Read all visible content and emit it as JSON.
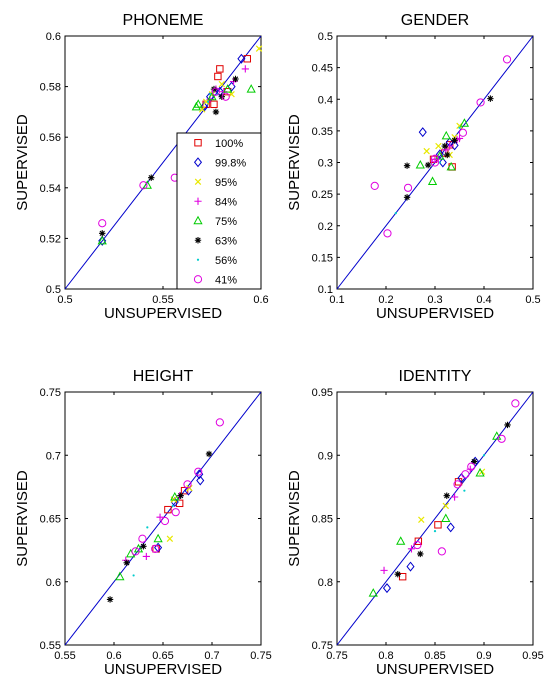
{
  "chart_data": [
    {
      "type": "scatter",
      "title": "PHONEME",
      "xlabel": "UNSUPERVISED",
      "ylabel": "SUPERVISED",
      "xlim": [
        0.5,
        0.6
      ],
      "ylim": [
        0.5,
        0.6
      ],
      "xticks": [
        "0.5",
        "0.55",
        "0.6"
      ],
      "yticks": [
        "0.5",
        "0.52",
        "0.54",
        "0.56",
        "0.58",
        "0.6"
      ],
      "diagonal": true,
      "legend": "right",
      "series": [
        {
          "name": "100%",
          "points": [
            [
              0.576,
              0.573
            ],
            [
              0.578,
              0.584
            ],
            [
              0.579,
              0.587
            ],
            [
              0.593,
              0.591
            ],
            [
              0.583,
              0.578
            ],
            [
              0.572,
              0.573
            ]
          ]
        },
        {
          "name": "99.8%",
          "points": [
            [
              0.571,
              0.572
            ],
            [
              0.59,
              0.591
            ],
            [
              0.574,
              0.576
            ],
            [
              0.585,
              0.58
            ],
            [
              0.579,
              0.578
            ],
            [
              0.519,
              0.519
            ]
          ]
        },
        {
          "name": "95%",
          "points": [
            [
              0.599,
              0.595
            ],
            [
              0.572,
              0.574
            ],
            [
              0.58,
              0.581
            ],
            [
              0.575,
              0.577
            ],
            [
              0.57,
              0.571
            ],
            [
              0.585,
              0.577
            ]
          ]
        },
        {
          "name": "84%",
          "points": [
            [
              0.592,
              0.587
            ],
            [
              0.581,
              0.578
            ],
            [
              0.577,
              0.579
            ],
            [
              0.574,
              0.575
            ],
            [
              0.586,
              0.582
            ]
          ]
        },
        {
          "name": "75%",
          "points": [
            [
              0.567,
              0.572
            ],
            [
              0.575,
              0.576
            ],
            [
              0.583,
              0.579
            ],
            [
              0.595,
              0.579
            ],
            [
              0.568,
              0.573
            ],
            [
              0.542,
              0.541
            ],
            [
              0.519,
              0.519
            ]
          ]
        },
        {
          "name": "63%",
          "points": [
            [
              0.576,
              0.579
            ],
            [
              0.587,
              0.583
            ],
            [
              0.577,
              0.57
            ],
            [
              0.58,
              0.576
            ],
            [
              0.544,
              0.544
            ],
            [
              0.519,
              0.522
            ]
          ]
        },
        {
          "name": "56%",
          "points": [
            [
              0.574,
              0.577
            ],
            [
              0.578,
              0.577
            ],
            [
              0.573,
              0.574
            ]
          ]
        },
        {
          "name": "41%",
          "points": [
            [
              0.519,
              0.526
            ],
            [
              0.54,
              0.541
            ],
            [
              0.577,
              0.578
            ],
            [
              0.582,
              0.576
            ],
            [
              0.556,
              0.544
            ]
          ]
        }
      ]
    },
    {
      "type": "scatter",
      "title": "GENDER",
      "xlabel": "UNSUPERVISED",
      "ylabel": "SUPERVISED",
      "xlim": [
        0.1,
        0.5
      ],
      "ylim": [
        0.1,
        0.5
      ],
      "xticks": [
        "0.1",
        "0.2",
        "0.3",
        "0.4",
        "0.5"
      ],
      "yticks": [
        "0.1",
        "0.15",
        "0.2",
        "0.25",
        "0.3",
        "0.35",
        "0.4",
        "0.45",
        "0.5"
      ],
      "diagonal": true,
      "series": [
        {
          "name": "100%",
          "points": [
            [
              0.335,
              0.293
            ],
            [
              0.33,
              0.328
            ],
            [
              0.297,
              0.305
            ],
            [
              0.32,
              0.315
            ]
          ]
        },
        {
          "name": "99.8%",
          "points": [
            [
              0.275,
              0.348
            ],
            [
              0.316,
              0.3
            ],
            [
              0.34,
              0.327
            ],
            [
              0.33,
              0.332
            ],
            [
              0.31,
              0.313
            ]
          ]
        },
        {
          "name": "95%",
          "points": [
            [
              0.283,
              0.318
            ],
            [
              0.307,
              0.326
            ],
            [
              0.35,
              0.358
            ],
            [
              0.34,
              0.34
            ],
            [
              0.33,
              0.312
            ]
          ]
        },
        {
          "name": "84%",
          "points": [
            [
              0.35,
              0.338
            ],
            [
              0.3,
              0.305
            ],
            [
              0.33,
              0.326
            ],
            [
              0.322,
              0.32
            ],
            [
              0.345,
              0.336
            ]
          ]
        },
        {
          "name": "75%",
          "points": [
            [
              0.295,
              0.27
            ],
            [
              0.323,
              0.342
            ],
            [
              0.333,
              0.293
            ],
            [
              0.36,
              0.362
            ],
            [
              0.27,
              0.296
            ],
            [
              0.31,
              0.31
            ]
          ]
        },
        {
          "name": "63%",
          "points": [
            [
              0.243,
              0.245
            ],
            [
              0.243,
              0.295
            ],
            [
              0.286,
              0.296
            ],
            [
              0.32,
              0.326
            ],
            [
              0.413,
              0.401
            ],
            [
              0.34,
              0.335
            ],
            [
              0.325,
              0.312
            ]
          ]
        },
        {
          "name": "56%",
          "points": [
            [
              0.35,
              0.355
            ],
            [
              0.22,
              0.22
            ],
            [
              0.31,
              0.3
            ]
          ]
        },
        {
          "name": "41%",
          "points": [
            [
              0.177,
              0.263
            ],
            [
              0.203,
              0.188
            ],
            [
              0.245,
              0.26
            ],
            [
              0.3,
              0.306
            ],
            [
              0.357,
              0.347
            ],
            [
              0.393,
              0.395
            ],
            [
              0.447,
              0.463
            ],
            [
              0.3,
              0.3
            ]
          ]
        }
      ]
    },
    {
      "type": "scatter",
      "title": "HEIGHT",
      "xlabel": "UNSUPERVISED",
      "ylabel": "SUPERVISED",
      "xlim": [
        0.55,
        0.75
      ],
      "ylim": [
        0.55,
        0.75
      ],
      "xticks": [
        "0.55",
        "0.6",
        "0.65",
        "0.7",
        "0.75"
      ],
      "yticks": [
        "0.55",
        "0.6",
        "0.65",
        "0.7",
        "0.75"
      ],
      "diagonal": true,
      "series": [
        {
          "name": "100%",
          "points": [
            [
              0.655,
              0.657
            ],
            [
              0.672,
              0.672
            ],
            [
              0.667,
              0.662
            ],
            [
              0.643,
              0.626
            ]
          ]
        },
        {
          "name": "99.8%",
          "points": [
            [
              0.687,
              0.685
            ],
            [
              0.676,
              0.672
            ],
            [
              0.645,
              0.627
            ],
            [
              0.662,
              0.663
            ],
            [
              0.688,
              0.68
            ]
          ]
        },
        {
          "name": "95%",
          "points": [
            [
              0.657,
              0.634
            ],
            [
              0.661,
              0.665
            ],
            [
              0.677,
              0.674
            ]
          ]
        },
        {
          "name": "84%",
          "points": [
            [
              0.633,
              0.62
            ],
            [
              0.612,
              0.617
            ],
            [
              0.647,
              0.651
            ],
            [
              0.667,
              0.668
            ]
          ]
        },
        {
          "name": "75%",
          "points": [
            [
              0.606,
              0.604
            ],
            [
              0.625,
              0.626
            ],
            [
              0.645,
              0.634
            ],
            [
              0.662,
              0.667
            ],
            [
              0.617,
              0.622
            ]
          ]
        },
        {
          "name": "63%",
          "points": [
            [
              0.596,
              0.586
            ],
            [
              0.613,
              0.615
            ],
            [
              0.63,
              0.628
            ],
            [
              0.668,
              0.668
            ],
            [
              0.697,
              0.701
            ]
          ]
        },
        {
          "name": "56%",
          "points": [
            [
              0.634,
              0.643
            ],
            [
              0.62,
              0.605
            ],
            [
              0.66,
              0.66
            ]
          ]
        },
        {
          "name": "41%",
          "points": [
            [
              0.622,
              0.624
            ],
            [
              0.629,
              0.634
            ],
            [
              0.652,
              0.648
            ],
            [
              0.663,
              0.655
            ],
            [
              0.675,
              0.677
            ],
            [
              0.686,
              0.687
            ],
            [
              0.708,
              0.726
            ],
            [
              0.642,
              0.626
            ]
          ]
        }
      ]
    },
    {
      "type": "scatter",
      "title": "IDENTITY",
      "xlabel": "UNSUPERVISED",
      "ylabel": "SUPERVISED",
      "xlim": [
        0.75,
        0.95
      ],
      "ylim": [
        0.75,
        0.95
      ],
      "xticks": [
        "0.75",
        "0.8",
        "0.85",
        "0.9",
        "0.95"
      ],
      "yticks": [
        "0.75",
        "0.8",
        "0.85",
        "0.9",
        "0.95"
      ],
      "diagonal": true,
      "series": [
        {
          "name": "100%",
          "points": [
            [
              0.817,
              0.804
            ],
            [
              0.833,
              0.832
            ],
            [
              0.853,
              0.845
            ],
            [
              0.874,
              0.879
            ]
          ]
        },
        {
          "name": "99.8%",
          "points": [
            [
              0.801,
              0.795
            ],
            [
              0.825,
              0.812
            ],
            [
              0.866,
              0.843
            ],
            [
              0.877,
              0.882
            ],
            [
              0.891,
              0.895
            ]
          ]
        },
        {
          "name": "95%",
          "points": [
            [
              0.836,
              0.849
            ],
            [
              0.861,
              0.86
            ],
            [
              0.898,
              0.887
            ]
          ]
        },
        {
          "name": "84%",
          "points": [
            [
              0.798,
              0.809
            ],
            [
              0.826,
              0.826
            ],
            [
              0.87,
              0.867
            ],
            [
              0.886,
              0.889
            ]
          ]
        },
        {
          "name": "75%",
          "points": [
            [
              0.787,
              0.791
            ],
            [
              0.815,
              0.832
            ],
            [
              0.861,
              0.85
            ],
            [
              0.896,
              0.886
            ],
            [
              0.913,
              0.915
            ]
          ]
        },
        {
          "name": "63%",
          "points": [
            [
              0.812,
              0.806
            ],
            [
              0.835,
              0.822
            ],
            [
              0.862,
              0.868
            ],
            [
              0.89,
              0.895
            ],
            [
              0.924,
              0.924
            ]
          ]
        },
        {
          "name": "56%",
          "points": [
            [
              0.85,
              0.84
            ],
            [
              0.88,
              0.872
            ],
            [
              0.9,
              0.9
            ]
          ]
        },
        {
          "name": "41%",
          "points": [
            [
              0.832,
              0.829
            ],
            [
              0.857,
              0.824
            ],
            [
              0.873,
              0.877
            ],
            [
              0.881,
              0.885
            ],
            [
              0.887,
              0.891
            ],
            [
              0.918,
              0.913
            ],
            [
              0.932,
              0.941
            ]
          ]
        }
      ]
    }
  ],
  "legend_colors": [
    "#e00000",
    "#0000cc",
    "#e8e800",
    "#e000e0",
    "#00cc00",
    "#000000",
    "#00cccc",
    "#e000e0"
  ],
  "legend_markers": [
    "square-marker",
    "diamond-marker",
    "x-marker",
    "plus-marker",
    "triangle-marker",
    "asterisk-marker",
    "dot-marker",
    "circle-marker"
  ]
}
